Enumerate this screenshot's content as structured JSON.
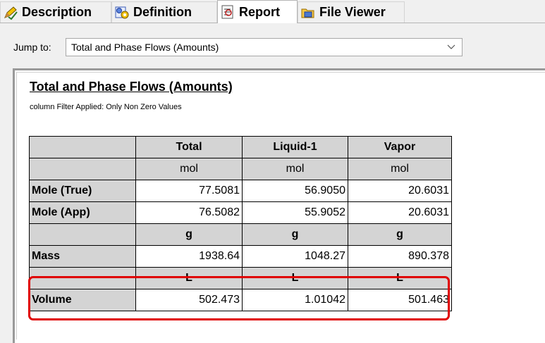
{
  "tabs": [
    {
      "label": "Description",
      "icon": "pencil-check-icon"
    },
    {
      "label": "Definition",
      "icon": "gears-icon"
    },
    {
      "label": "Report",
      "icon": "report-icon"
    },
    {
      "label": "File Viewer",
      "icon": "folder-icon"
    }
  ],
  "jump": {
    "label": "Jump to:",
    "selected": "Total and Phase Flows (Amounts)"
  },
  "report": {
    "title": "Total and Phase Flows (Amounts)",
    "filter_note": "column Filter Applied: Only Non Zero Values",
    "columns": [
      "Total",
      "Liquid-1",
      "Vapor"
    ],
    "units_mol": [
      "mol",
      "mol",
      "mol"
    ],
    "mole_true": {
      "label": "Mole (True)",
      "values": [
        "77.5081",
        "56.9050",
        "20.6031"
      ]
    },
    "mole_app": {
      "label": "Mole (App)",
      "values": [
        "76.5082",
        "55.9052",
        "20.6031"
      ]
    },
    "units_g": [
      "g",
      "g",
      "g"
    ],
    "mass": {
      "label": "Mass",
      "values": [
        "1938.64",
        "1048.27",
        "890.378"
      ]
    },
    "units_l": [
      "L",
      "L",
      "L"
    ],
    "volume": {
      "label": "Volume",
      "values": [
        "502.473",
        "1.01042",
        "501.463"
      ]
    }
  },
  "colors": {
    "highlight": "#e00000",
    "header_gray": "#d4d4d4"
  }
}
